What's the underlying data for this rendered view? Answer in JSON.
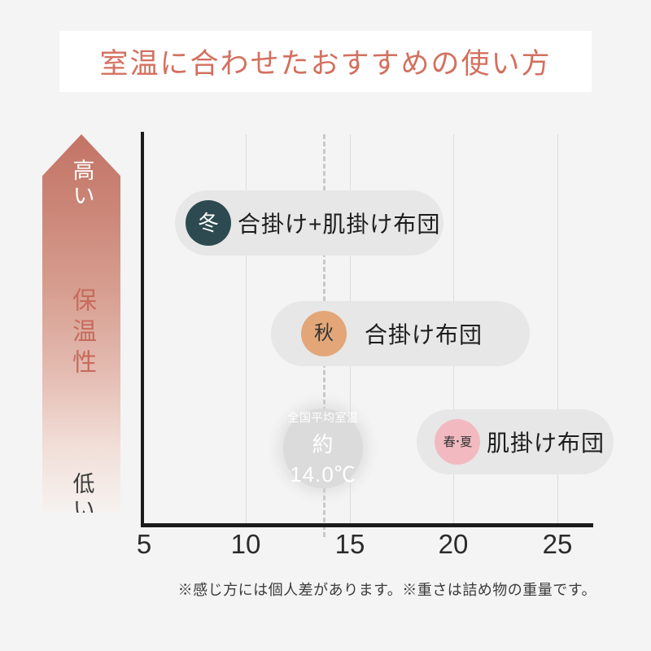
{
  "title": {
    "text": "室温に合わせたおすすめの使い方"
  },
  "warmth_axis": {
    "high": "高い",
    "label": "保温性",
    "low": "低い"
  },
  "x_axis": {
    "ticks": [
      "5",
      "10",
      "15",
      "20",
      "25"
    ]
  },
  "average_marker": {
    "line1": "全国平均室温",
    "line2": "約14.0℃"
  },
  "pills": [
    {
      "season": "冬",
      "label": "合掛け+肌掛け布団",
      "circle_color": "#2e4a51",
      "circle_text_color": "#ffffff"
    },
    {
      "season": "秋",
      "label": "合掛け布団",
      "circle_color": "#e3a678",
      "circle_text_color": "#333333"
    },
    {
      "season": "春･夏",
      "label": "肌掛け布団",
      "circle_color": "#f2bac0",
      "circle_text_color": "#333333"
    }
  ],
  "footnote": "※感じ方には個人差があります。※重さは詰め物の重量です。",
  "colors": {
    "page_background": "#f4f4f4",
    "title_text": "#d3705f",
    "arrow_gradient_top": "#c37465",
    "arrow_gradient_bottom": "#f6f2f0",
    "axis": "#1b1b1b",
    "gridline": "#dcdcdc",
    "dashed_reference": "#c9c9c9",
    "pill_background": "#e7e7e7",
    "average_circle": "#dbdbdb",
    "winter_circle": "#2e4a51",
    "autumn_circle": "#e3a678",
    "spring_summer_circle": "#f2bac0"
  },
  "chart_data": {
    "type": "bar",
    "orientation": "horizontal-range",
    "title": "室温に合わせたおすすめの使い方",
    "xlabel": "",
    "ylabel": "保温性",
    "y_axis_direction_labels": {
      "top": "高い",
      "bottom": "低い"
    },
    "x_ticks": [
      5,
      10,
      15,
      20,
      25
    ],
    "xlim": [
      5,
      27
    ],
    "grid": "vertical-only",
    "reference_line": {
      "x": 14.0,
      "style": "dashed",
      "label": "全国平均室温",
      "value_label": "約14.0℃"
    },
    "series": [
      {
        "name": "冬",
        "product": "合掛け+肌掛け布団",
        "temp_range_c": [
          6.5,
          19.5
        ],
        "warmth_level": "high"
      },
      {
        "name": "秋",
        "product": "合掛け布団",
        "temp_range_c": [
          11.0,
          23.5
        ],
        "warmth_level": "medium"
      },
      {
        "name": "春･夏",
        "product": "肌掛け布団",
        "temp_range_c": [
          18.0,
          27.5
        ],
        "warmth_level": "low"
      }
    ]
  }
}
